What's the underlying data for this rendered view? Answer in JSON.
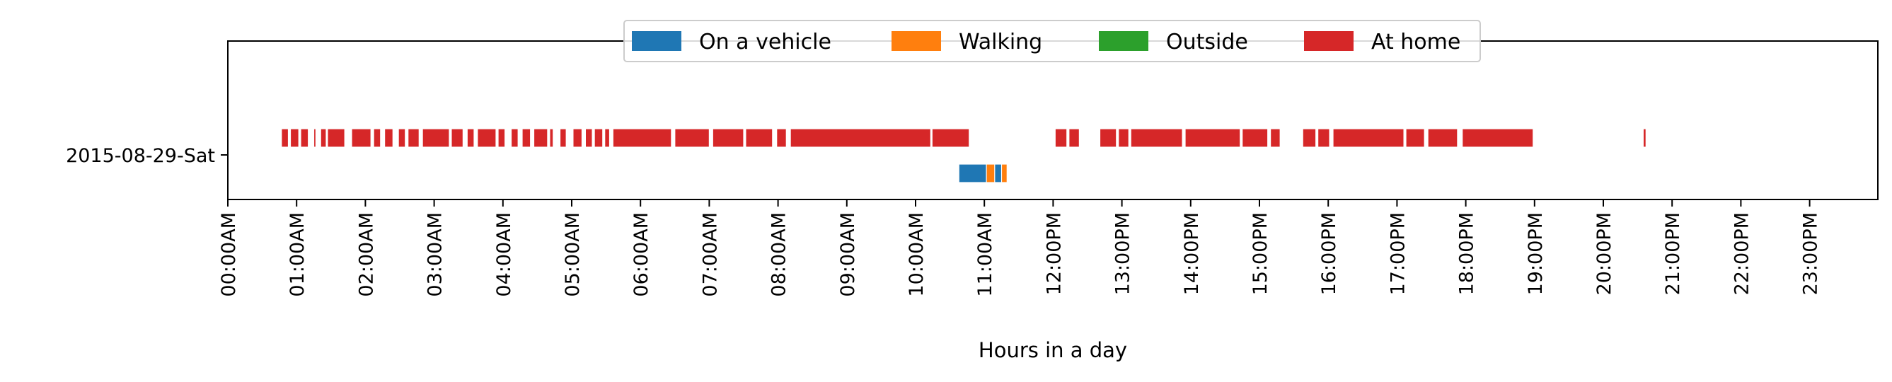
{
  "chart_data": {
    "type": "timeline",
    "xlabel": "Hours in a day",
    "ylabel": "",
    "xlim": [
      0,
      24
    ],
    "x_ticks": [
      {
        "value": 0,
        "label": "00:00AM"
      },
      {
        "value": 1,
        "label": "01:00AM"
      },
      {
        "value": 2,
        "label": "02:00AM"
      },
      {
        "value": 3,
        "label": "03:00AM"
      },
      {
        "value": 4,
        "label": "04:00AM"
      },
      {
        "value": 5,
        "label": "05:00AM"
      },
      {
        "value": 6,
        "label": "06:00AM"
      },
      {
        "value": 7,
        "label": "07:00AM"
      },
      {
        "value": 8,
        "label": "08:00AM"
      },
      {
        "value": 9,
        "label": "09:00AM"
      },
      {
        "value": 10,
        "label": "10:00AM"
      },
      {
        "value": 11,
        "label": "11:00AM"
      },
      {
        "value": 12,
        "label": "12:00PM"
      },
      {
        "value": 13,
        "label": "13:00PM"
      },
      {
        "value": 14,
        "label": "14:00PM"
      },
      {
        "value": 15,
        "label": "15:00PM"
      },
      {
        "value": 16,
        "label": "16:00PM"
      },
      {
        "value": 17,
        "label": "17:00PM"
      },
      {
        "value": 18,
        "label": "18:00PM"
      },
      {
        "value": 19,
        "label": "19:00PM"
      },
      {
        "value": 20,
        "label": "20:00PM"
      },
      {
        "value": 21,
        "label": "21:00PM"
      },
      {
        "value": 22,
        "label": "22:00PM"
      },
      {
        "value": 23,
        "label": "23:00PM"
      }
    ],
    "rows": [
      "2015-08-29-Sat"
    ],
    "legend_position": "top-center",
    "grid": false,
    "series": [
      {
        "name": "On a vehicle",
        "color": "#1f77b4",
        "lane": "lower",
        "segments": [
          [
            10.63,
            11.03
          ],
          [
            11.12,
            11.28
          ]
        ]
      },
      {
        "name": "Walking",
        "color": "#ff7f0e",
        "lane": "lower",
        "segments": [
          [
            11.03,
            11.15
          ],
          [
            11.25,
            11.33
          ]
        ]
      },
      {
        "name": "Outside",
        "color": "#2ca02c",
        "lane": "lower",
        "segments": []
      },
      {
        "name": "At home",
        "color": "#d62728",
        "lane": "upper",
        "segments": [
          [
            0.78,
            0.88
          ],
          [
            0.91,
            1.03
          ],
          [
            1.06,
            1.17
          ],
          [
            1.25,
            1.28
          ],
          [
            1.35,
            1.43
          ],
          [
            1.45,
            1.7
          ],
          [
            1.8,
            2.08
          ],
          [
            2.12,
            2.22
          ],
          [
            2.28,
            2.4
          ],
          [
            2.48,
            2.58
          ],
          [
            2.62,
            2.78
          ],
          [
            2.83,
            3.22
          ],
          [
            3.25,
            3.42
          ],
          [
            3.48,
            3.58
          ],
          [
            3.63,
            3.9
          ],
          [
            3.93,
            4.03
          ],
          [
            4.12,
            4.22
          ],
          [
            4.28,
            4.4
          ],
          [
            4.45,
            4.65
          ],
          [
            4.68,
            4.73
          ],
          [
            4.83,
            4.92
          ],
          [
            5.02,
            5.15
          ],
          [
            5.2,
            5.3
          ],
          [
            5.33,
            5.45
          ],
          [
            5.48,
            5.55
          ],
          [
            5.6,
            6.45
          ],
          [
            6.5,
            7.0
          ],
          [
            7.05,
            7.5
          ],
          [
            7.53,
            7.92
          ],
          [
            7.98,
            8.12
          ],
          [
            8.18,
            10.22
          ],
          [
            10.24,
            10.78
          ],
          [
            12.03,
            12.2
          ],
          [
            12.23,
            12.38
          ],
          [
            12.68,
            12.92
          ],
          [
            12.95,
            13.1
          ],
          [
            13.13,
            13.88
          ],
          [
            13.92,
            14.72
          ],
          [
            14.75,
            15.12
          ],
          [
            15.16,
            15.3
          ],
          [
            15.63,
            15.82
          ],
          [
            15.85,
            16.02
          ],
          [
            16.07,
            17.1
          ],
          [
            17.13,
            17.4
          ],
          [
            17.45,
            17.88
          ],
          [
            17.95,
            18.98
          ],
          [
            20.58,
            20.62
          ]
        ]
      }
    ]
  }
}
